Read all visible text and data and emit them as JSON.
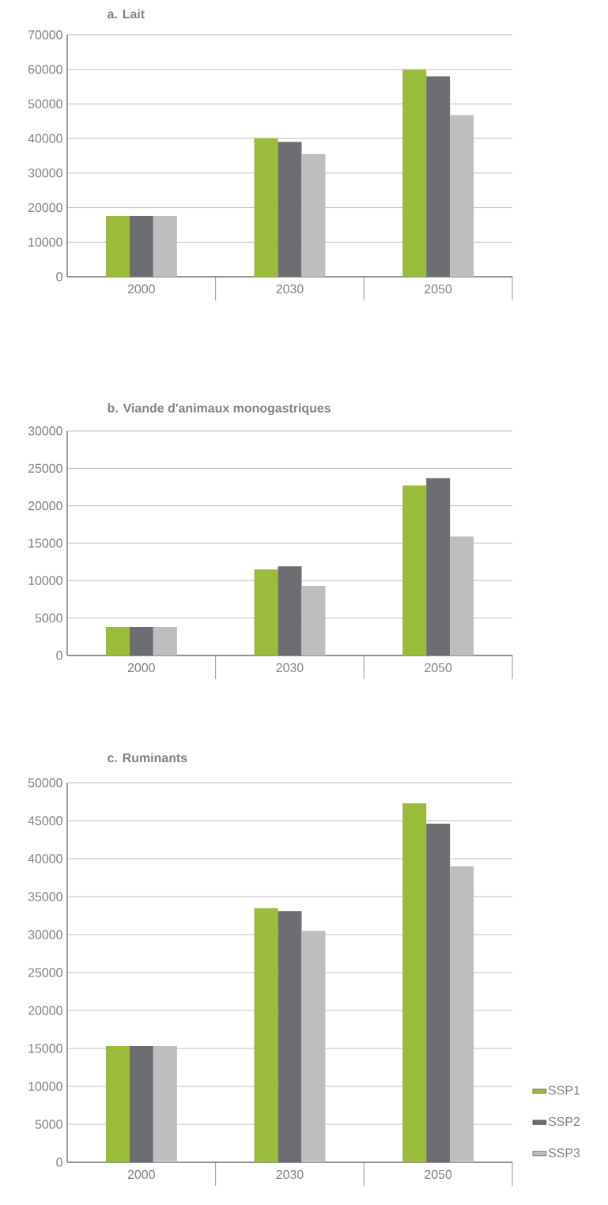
{
  "chart_data": [
    {
      "type": "bar",
      "title": "a. Lait",
      "categories": [
        "2000",
        "2030",
        "2050"
      ],
      "ylim": [
        0,
        70000
      ],
      "yticks": [
        0,
        10000,
        20000,
        30000,
        40000,
        50000,
        60000,
        70000
      ],
      "grid": "y",
      "series": [
        {
          "color": "#9bbb3b",
          "values": [
            17600,
            40100,
            59900
          ]
        },
        {
          "color": "#6d6e71",
          "values": [
            17600,
            39000,
            58000
          ]
        },
        {
          "color": "#bcbec0",
          "values": [
            17600,
            35500,
            46800
          ]
        }
      ]
    },
    {
      "type": "bar",
      "title": "b. Viande d'animaux monogastriques",
      "categories": [
        "2000",
        "2030",
        "2050"
      ],
      "ylim": [
        0,
        30000
      ],
      "yticks": [
        0,
        5000,
        10000,
        15000,
        20000,
        25000,
        30000
      ],
      "grid": "y",
      "series": [
        {
          "color": "#9bbb3b",
          "values": [
            3800,
            11500,
            22700
          ]
        },
        {
          "color": "#6d6e71",
          "values": [
            3800,
            11900,
            23700
          ]
        },
        {
          "color": "#bcbec0",
          "values": [
            3800,
            9300,
            15900
          ]
        }
      ]
    },
    {
      "type": "bar",
      "title": "c. Ruminants",
      "categories": [
        "2000",
        "2030",
        "2050"
      ],
      "ylim": [
        0,
        50000
      ],
      "yticks": [
        0,
        5000,
        10000,
        15000,
        20000,
        25000,
        30000,
        35000,
        40000,
        45000,
        50000
      ],
      "grid": "y",
      "legend": "right",
      "series": [
        {
          "name": "SSP1",
          "color": "#9bbb3b",
          "values": [
            15300,
            33500,
            47300
          ]
        },
        {
          "name": "SSP2",
          "color": "#6d6e71",
          "values": [
            15300,
            33100,
            44600
          ]
        },
        {
          "name": "SSP3",
          "color": "#bcbec0",
          "values": [
            15300,
            30500,
            39000
          ]
        }
      ]
    }
  ]
}
